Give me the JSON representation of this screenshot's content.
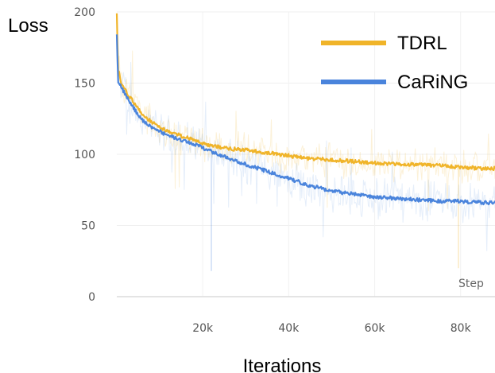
{
  "chart_data": {
    "type": "line",
    "xlabel": "Iterations",
    "ylabel": "Loss",
    "step_label": "Step",
    "xlim": [
      0,
      88000
    ],
    "ylim": [
      0,
      200
    ],
    "xticks": [
      20000,
      40000,
      60000,
      80000
    ],
    "xtick_labels": [
      "20k",
      "40k",
      "60k",
      "80k"
    ],
    "yticks": [
      0,
      50,
      100,
      150,
      200
    ],
    "ytick_labels": [
      "0",
      "50",
      "100",
      "150",
      "200"
    ],
    "grid": true,
    "legend_position": "top-right",
    "series": [
      {
        "name": "TDRL",
        "color": "#f0b429",
        "x": [
          0,
          300,
          1000,
          2000,
          4000,
          6000,
          8000,
          10000,
          12000,
          15000,
          18000,
          22000,
          26000,
          30000,
          35000,
          40000,
          45000,
          50000,
          55000,
          60000,
          65000,
          70000,
          75000,
          80000,
          85000,
          88000
        ],
        "values": [
          198,
          160,
          150,
          145,
          136,
          128,
          123,
          119,
          116,
          113,
          110,
          106,
          104,
          103,
          101,
          99,
          97,
          96,
          95,
          94,
          93,
          93,
          92,
          91,
          90,
          90
        ]
      },
      {
        "name": "CaRiNG",
        "color": "#4a84dc",
        "x": [
          0,
          300,
          1000,
          2000,
          4000,
          6000,
          8000,
          10000,
          12000,
          15000,
          18000,
          22000,
          26000,
          30000,
          35000,
          40000,
          45000,
          50000,
          55000,
          60000,
          65000,
          70000,
          75000,
          80000,
          85000,
          88000
        ],
        "values": [
          183,
          152,
          147,
          142,
          132,
          124,
          119,
          116,
          113,
          110,
          107,
          102,
          97,
          93,
          88,
          83,
          78,
          74,
          72,
          70,
          69,
          68,
          67,
          67,
          66,
          66
        ]
      }
    ]
  }
}
